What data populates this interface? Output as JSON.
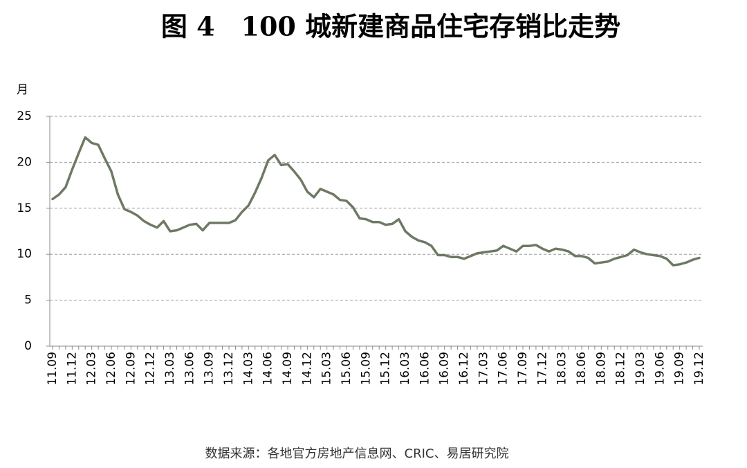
{
  "chart_data": {
    "type": "line",
    "title": "图 4　100 城新建商品住宅存销比走势",
    "y_label": "月",
    "source": "数据来源：各地官方房地产信息网、CRIC、易居研究院",
    "categories": [
      "11.09",
      null,
      null,
      "11.12",
      null,
      null,
      "12.03",
      null,
      null,
      "12.06",
      null,
      null,
      "12.09",
      null,
      null,
      "12.12",
      null,
      null,
      "13.03",
      null,
      null,
      "13.06",
      null,
      null,
      "13.09",
      null,
      null,
      "13.12",
      null,
      null,
      "14.03",
      null,
      null,
      "14.06",
      null,
      null,
      "14.09",
      null,
      null,
      "14.12",
      null,
      null,
      "15.03",
      null,
      null,
      "15.06",
      null,
      null,
      "15.09",
      null,
      null,
      "15.12",
      null,
      null,
      "16.03",
      null,
      null,
      "16.06",
      null,
      null,
      "16.09",
      null,
      null,
      "16.12",
      null,
      null,
      "17.03",
      null,
      null,
      "17.06",
      null,
      null,
      "17.09",
      null,
      null,
      "17.12",
      null,
      null,
      "18.03",
      null,
      null,
      "18.06",
      null,
      null,
      "18.09",
      null,
      null,
      "18.12",
      null,
      null,
      "19.03",
      null,
      null,
      "19.06",
      null,
      null,
      "19.09",
      null,
      null,
      "19.12"
    ],
    "series": [
      {
        "name": "存销比",
        "color": "#6e7964",
        "values": [
          16.0,
          16.5,
          17.3,
          19.2,
          21.0,
          22.7,
          22.1,
          21.9,
          20.4,
          19.0,
          16.5,
          14.9,
          14.6,
          14.2,
          13.6,
          13.2,
          12.9,
          13.6,
          12.5,
          12.6,
          12.9,
          13.2,
          13.3,
          12.6,
          13.4,
          13.4,
          13.4,
          13.4,
          13.7,
          14.6,
          15.3,
          16.7,
          18.3,
          20.2,
          20.8,
          19.7,
          19.8,
          19.0,
          18.1,
          16.8,
          16.2,
          17.1,
          16.8,
          16.5,
          15.9,
          15.8,
          15.1,
          13.9,
          13.8,
          13.5,
          13.5,
          13.2,
          13.3,
          13.8,
          12.5,
          11.9,
          11.5,
          11.3,
          10.9,
          9.9,
          9.9,
          9.7,
          9.7,
          9.5,
          9.8,
          10.1,
          10.2,
          10.3,
          10.4,
          10.9,
          10.6,
          10.3,
          10.9,
          10.9,
          11.0,
          10.6,
          10.3,
          10.6,
          10.5,
          10.3,
          9.8,
          9.8,
          9.6,
          9.0,
          9.1,
          9.2,
          9.5,
          9.7,
          9.9,
          10.5,
          10.2,
          10.0,
          9.9,
          9.8,
          9.5,
          8.8,
          8.9,
          9.1,
          9.4,
          9.6
        ]
      }
    ],
    "ylim": [
      0,
      25
    ],
    "yticks": [
      0,
      5,
      10,
      15,
      20,
      25
    ],
    "grid": true
  }
}
